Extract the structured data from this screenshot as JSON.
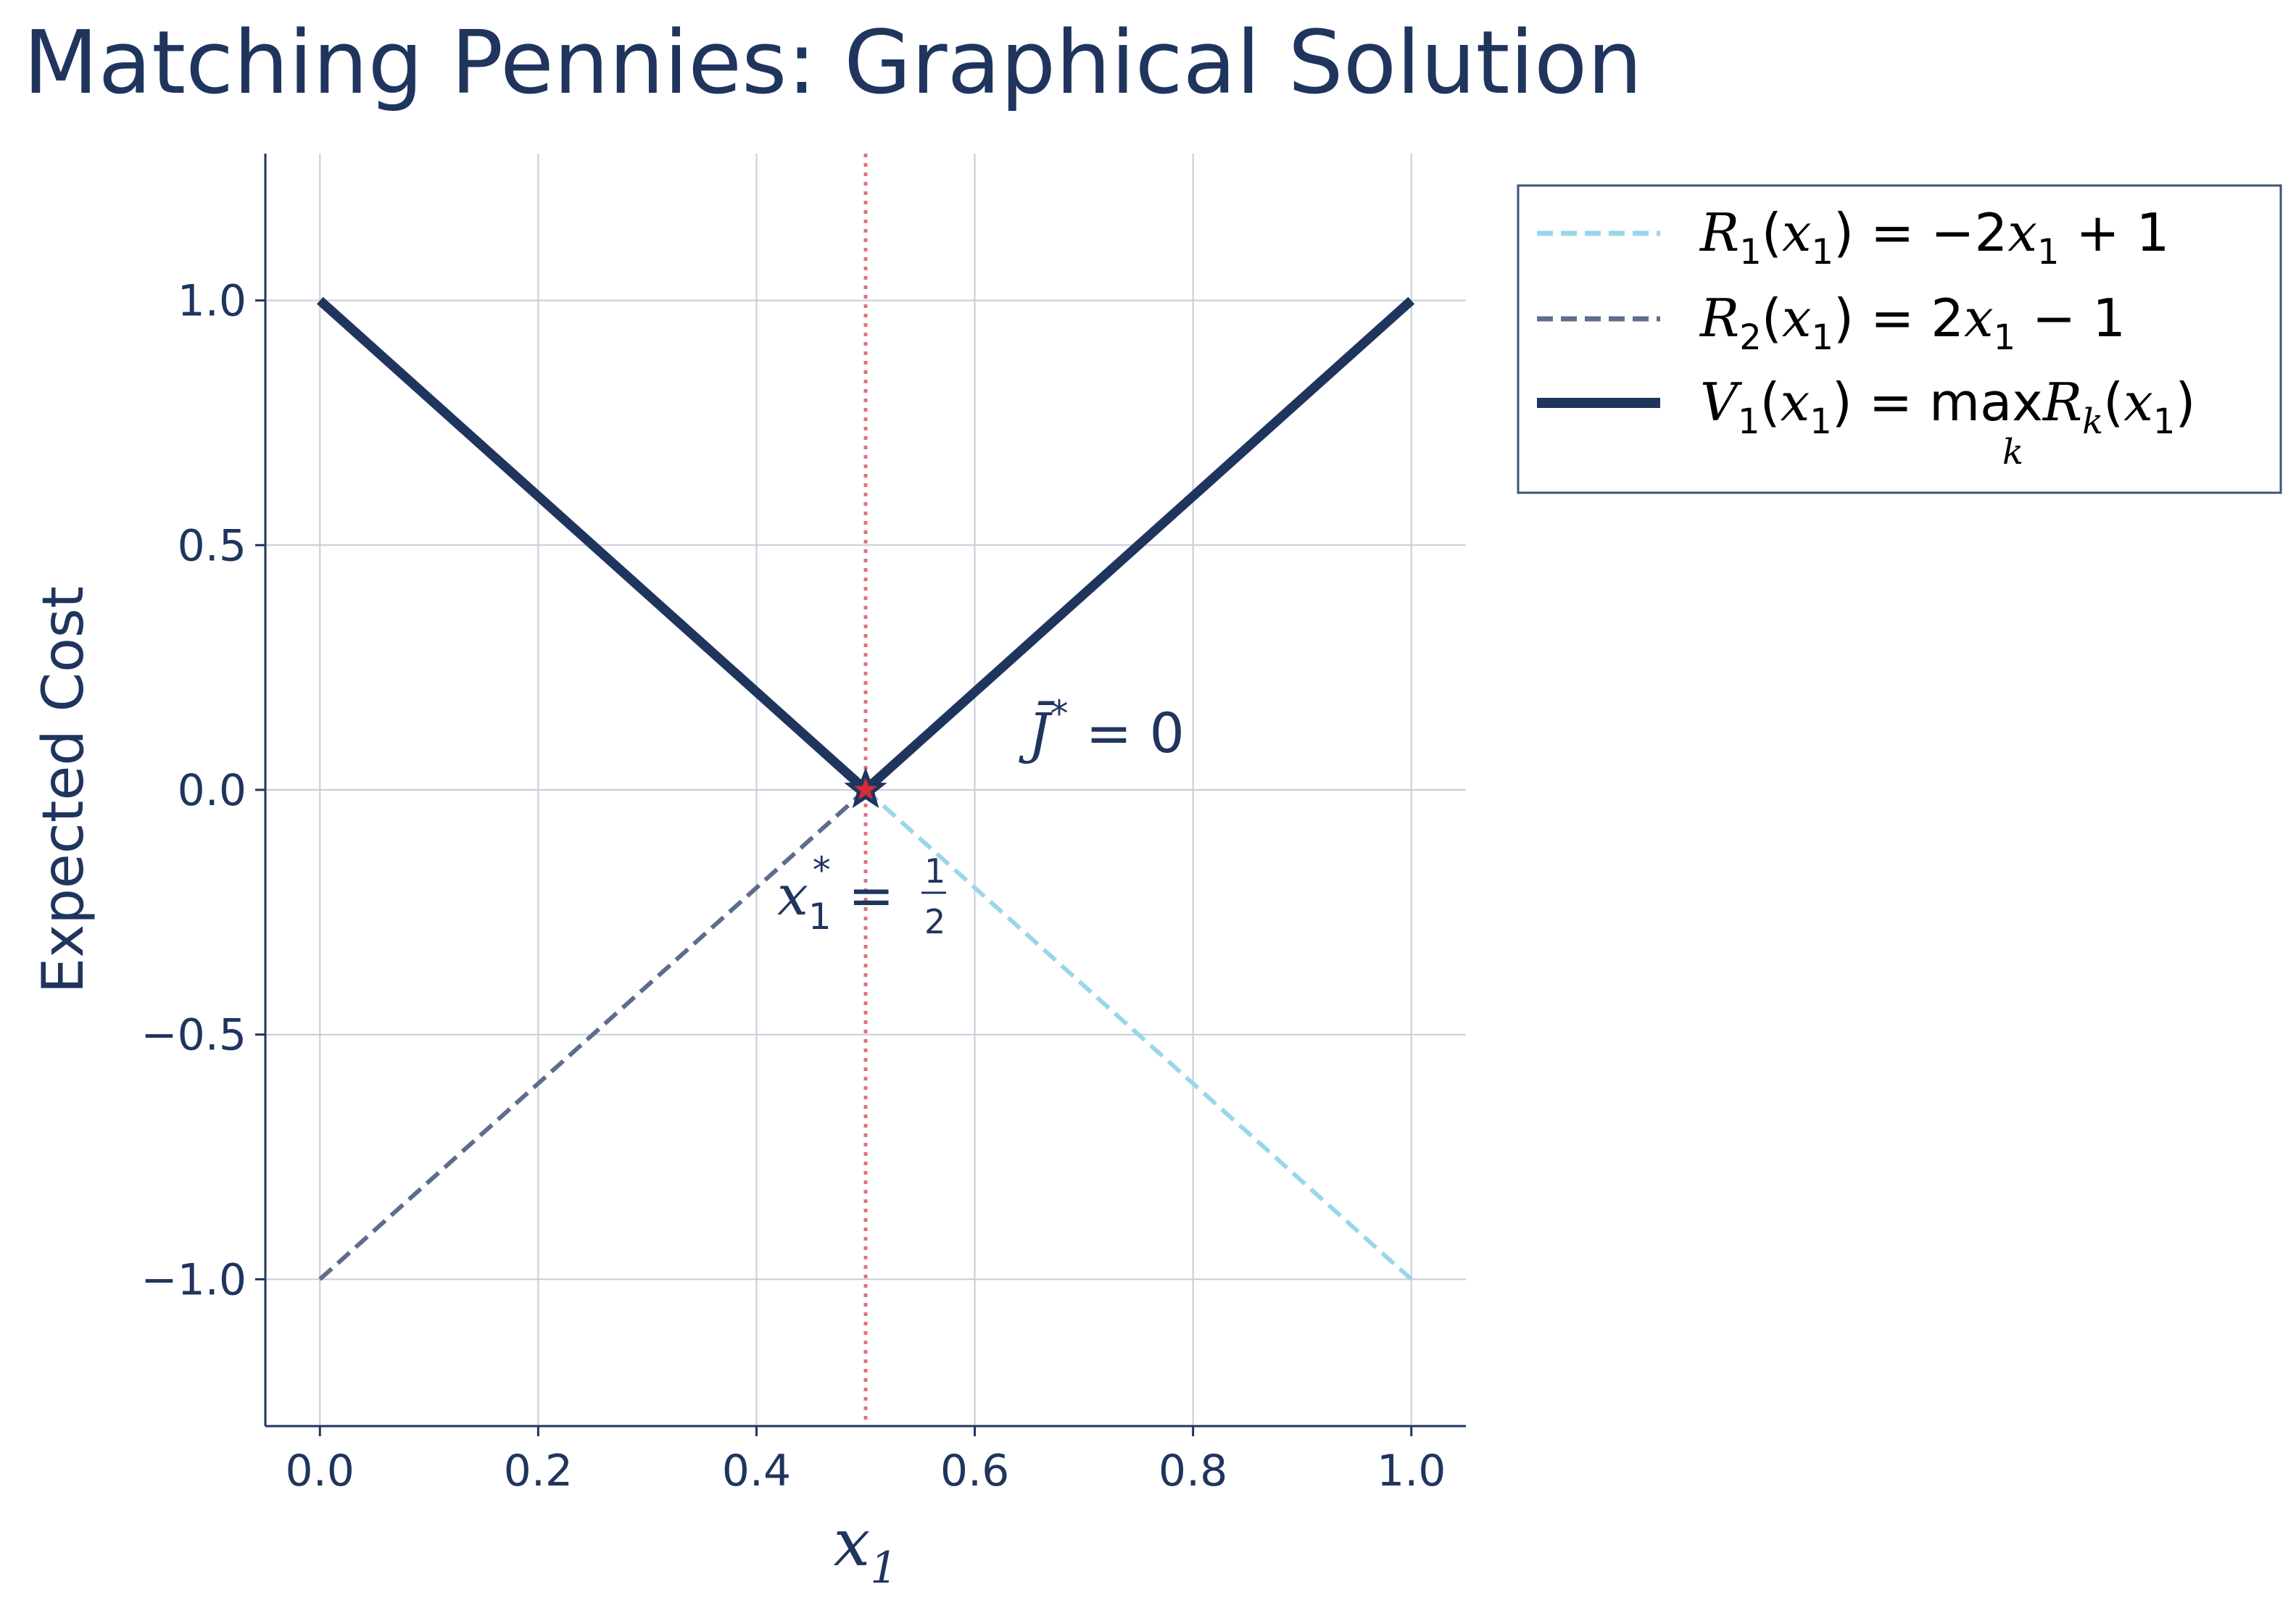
{
  "chart_data": {
    "type": "line",
    "title": "Matching Pennies: Graphical Solution",
    "xlabel": "x1",
    "ylabel": "Expected Cost",
    "xlim": [
      -0.05,
      1.05
    ],
    "ylim": [
      -1.3,
      1.3
    ],
    "xticks": [
      0.0,
      0.2,
      0.4,
      0.6,
      0.8,
      1.0
    ],
    "xtick_labels": [
      "0.0",
      "0.2",
      "0.4",
      "0.6",
      "0.8",
      "1.0"
    ],
    "yticks": [
      -1.0,
      -0.5,
      0.0,
      0.5,
      1.0
    ],
    "ytick_labels": [
      "−1.0",
      "−0.5",
      "0.0",
      "0.5",
      "1.0"
    ],
    "grid": true,
    "legend_position": "outside-right-top",
    "series": [
      {
        "name": "R1(x1) = −2x1 + 1",
        "style": "dashed",
        "color": "#9ad6ea",
        "x": [
          0.5,
          1.0
        ],
        "y": [
          0.0,
          -1.0
        ]
      },
      {
        "name": "R2(x1) = 2x1 − 1",
        "style": "dashed",
        "color": "#5d6d8b",
        "x": [
          0.0,
          0.5
        ],
        "y": [
          -1.0,
          0.0
        ]
      },
      {
        "name": "V1(x1) = max_k Rk(x1)",
        "style": "solid",
        "color": "#1f355e",
        "x": [
          0.0,
          0.5,
          1.0
        ],
        "y": [
          1.0,
          0.0,
          1.0
        ]
      }
    ],
    "vline": {
      "x": 0.5,
      "style": "dotted",
      "color": "#e0737c"
    },
    "marker": {
      "x": 0.5,
      "y": 0.0,
      "shape": "star",
      "fill": "#d42a3c",
      "edge": "#1f355e"
    },
    "annotations": [
      {
        "text": "J̄* = 0",
        "x": 0.65,
        "y": 0.1
      },
      {
        "text": "x1* = 1/2",
        "x": 0.42,
        "y": -0.22
      }
    ]
  },
  "colors": {
    "text": "#1f355e",
    "axis": "#1f355e",
    "grid": "#c9ccd8",
    "legend_border": "#3d5478"
  }
}
